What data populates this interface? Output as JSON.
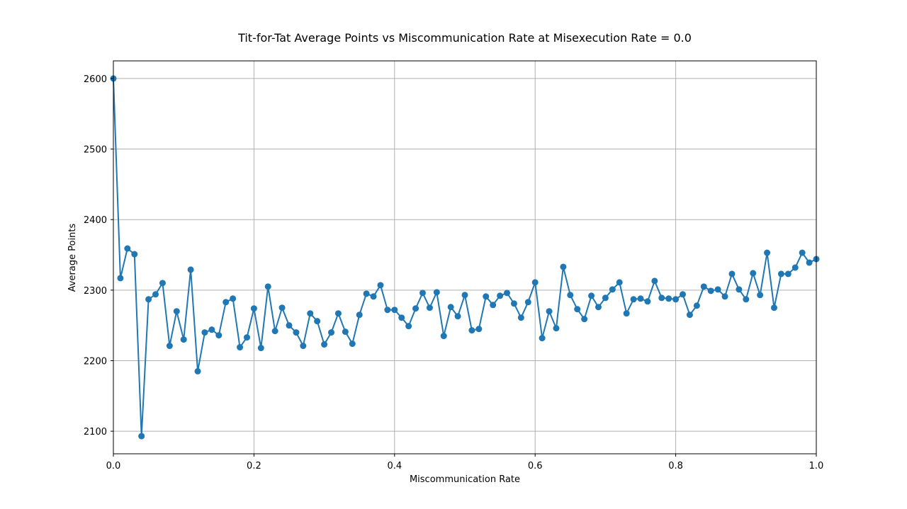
{
  "chart_data": {
    "type": "line",
    "title": "Tit-for-Tat Average Points vs Miscommunication Rate at Misexecution Rate = 0.0",
    "xlabel": "Miscommunication Rate",
    "ylabel": "Average Points",
    "xlim": [
      0.0,
      1.0
    ],
    "ylim": [
      2068,
      2625
    ],
    "x_ticks": [
      0.0,
      0.2,
      0.4,
      0.6,
      0.8,
      1.0
    ],
    "x_tick_labels": [
      "0.0",
      "0.2",
      "0.4",
      "0.6",
      "0.8",
      "1.0"
    ],
    "y_ticks": [
      2100,
      2200,
      2300,
      2400,
      2500,
      2600
    ],
    "y_tick_labels": [
      "2100",
      "2200",
      "2300",
      "2400",
      "2500",
      "2600"
    ],
    "grid": true,
    "markers": true,
    "series": [
      {
        "color": "#1f77b4",
        "x": [
          0.0,
          0.01,
          0.02,
          0.03,
          0.04,
          0.05,
          0.06,
          0.07,
          0.08,
          0.09,
          0.1,
          0.11,
          0.12,
          0.13,
          0.14,
          0.15,
          0.16,
          0.17,
          0.18,
          0.19,
          0.2,
          0.21,
          0.22,
          0.23,
          0.24,
          0.25,
          0.26,
          0.27,
          0.28,
          0.29,
          0.3,
          0.31,
          0.32,
          0.33,
          0.34,
          0.35,
          0.36,
          0.37,
          0.38,
          0.39,
          0.4,
          0.41,
          0.42,
          0.43,
          0.44,
          0.45,
          0.46,
          0.47,
          0.48,
          0.49,
          0.5,
          0.51,
          0.52,
          0.53,
          0.54,
          0.55,
          0.56,
          0.57,
          0.58,
          0.59,
          0.6,
          0.61,
          0.62,
          0.63,
          0.64,
          0.65,
          0.66,
          0.67,
          0.68,
          0.69,
          0.7,
          0.71,
          0.72,
          0.73,
          0.74,
          0.75,
          0.76,
          0.77,
          0.78,
          0.79,
          0.8,
          0.81,
          0.82,
          0.83,
          0.84,
          0.85,
          0.86,
          0.87,
          0.88,
          0.89,
          0.9,
          0.91,
          0.92,
          0.93,
          0.94,
          0.95,
          0.96,
          0.97,
          0.98,
          0.99,
          1.0
        ],
        "y": [
          2600,
          2317,
          2359,
          2351,
          2093,
          2287,
          2294,
          2310,
          2221,
          2270,
          2230,
          2329,
          2185,
          2240,
          2244,
          2236,
          2283,
          2288,
          2219,
          2233,
          2274,
          2218,
          2305,
          2242,
          2275,
          2250,
          2240,
          2221,
          2267,
          2256,
          2223,
          2240,
          2267,
          2241,
          2224,
          2265,
          2295,
          2291,
          2307,
          2272,
          2272,
          2261,
          2249,
          2274,
          2296,
          2275,
          2297,
          2235,
          2276,
          2263,
          2293,
          2243,
          2245,
          2291,
          2279,
          2292,
          2296,
          2281,
          2261,
          2283,
          2311,
          2232,
          2270,
          2246,
          2333,
          2293,
          2273,
          2259,
          2292,
          2276,
          2289,
          2301,
          2311,
          2267,
          2287,
          2288,
          2284,
          2313,
          2289,
          2288,
          2287,
          2294,
          2265,
          2278,
          2305,
          2299,
          2301,
          2291,
          2323,
          2301,
          2287,
          2324,
          2293,
          2353,
          2275,
          2323,
          2323,
          2332,
          2353,
          2339,
          2344
        ]
      }
    ]
  }
}
